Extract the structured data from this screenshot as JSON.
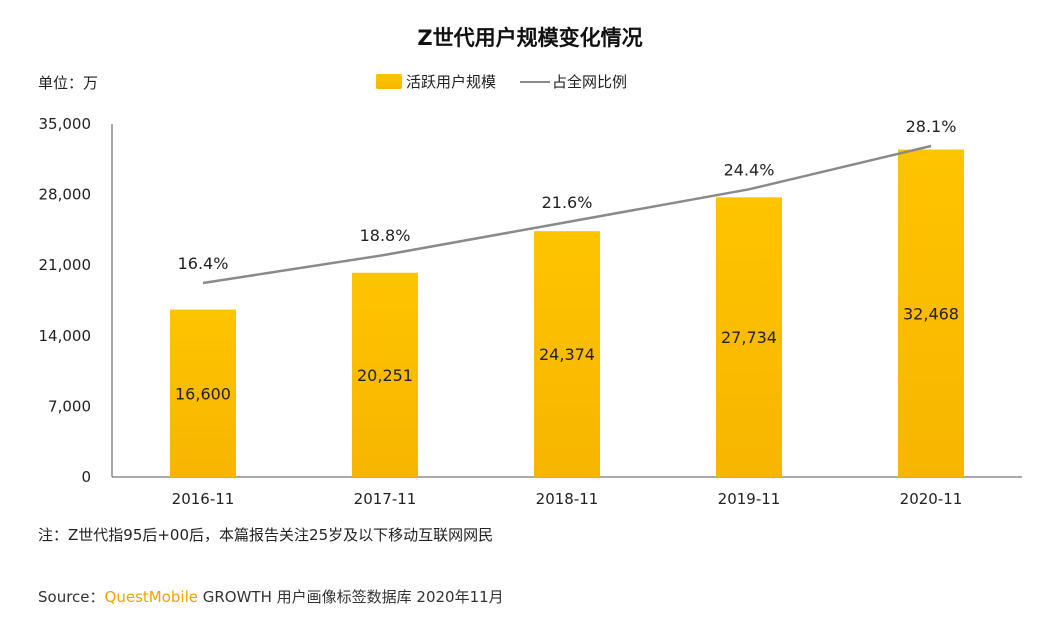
{
  "chart_data": {
    "type": "bar",
    "title": "Z世代用户规模变化情况",
    "unit_label": "单位：万",
    "categories": [
      "2016-11",
      "2017-11",
      "2018-11",
      "2019-11",
      "2020-11"
    ],
    "series": [
      {
        "name": "活跃用户规模",
        "type": "bar",
        "values": [
          16600,
          20251,
          24374,
          27734,
          32468
        ],
        "labels": [
          "16,600",
          "20,251",
          "24,374",
          "27,734",
          "32,468"
        ],
        "color": "#ffc107"
      },
      {
        "name": "占全网比例",
        "type": "line",
        "values": [
          16.4,
          18.8,
          21.6,
          24.4,
          28.1
        ],
        "labels": [
          "16.4%",
          "18.8%",
          "21.6%",
          "24.4%",
          "28.1%"
        ],
        "color": "#8a8a8a"
      }
    ],
    "yticks": [
      "0",
      "7,000",
      "14,000",
      "21,000",
      "28,000",
      "35,000"
    ],
    "ylim": [
      0,
      35000
    ],
    "grid": false,
    "legend_position": "top-center"
  },
  "footer": {
    "note": "注：Z世代指95后+00后，本篇报告关注25岁及以下移动互联网网民",
    "source_prefix": "Source：",
    "source_brand": "QuestMobile",
    "source_suffix": " GROWTH 用户画像标签数据库 2020年11月"
  }
}
